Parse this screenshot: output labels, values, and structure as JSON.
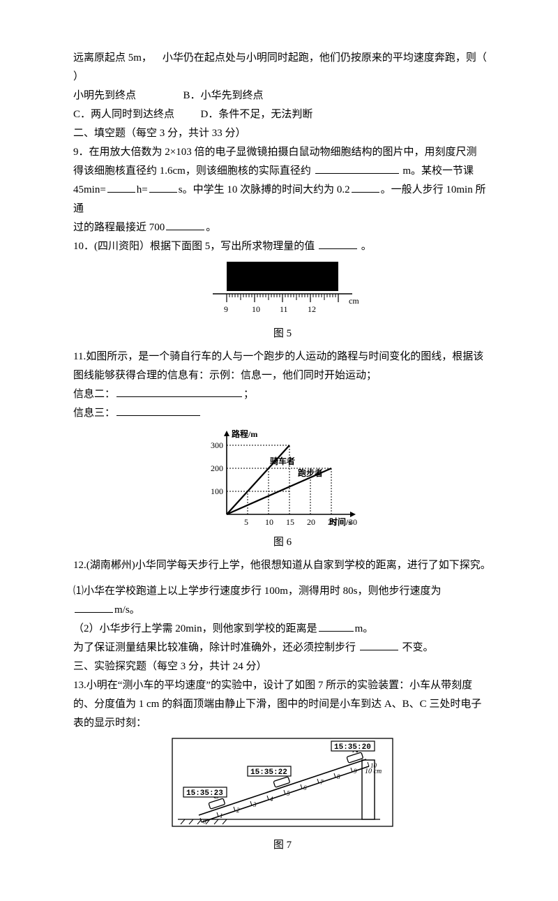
{
  "q8": {
    "line1_a": "远离原起点 5m，",
    "line1_b": "小华仍在起点处与小明同时起跑，他们仍按原来的平均速度奔跑，则（",
    "line2": "）",
    "optA": "小明先到终点",
    "optB": "B．小华先到终点",
    "optC": "C．两人同时到达终点",
    "optD": "D．条件不足，无法判断"
  },
  "section2": "二、填空题（每空 3 分，共计 33 分）",
  "q9": {
    "l1": "9．在用放大倍数为 2×103 倍的电子显微镜拍摄白鼠动物细胞结构的图片中，用刻度尺测",
    "l2a": "得该细胞核直径约 1.6cm，则该细胞核的实际直径约",
    "l2b": "m。某校一节课",
    "l3a": "45min=",
    "l3b": "h=",
    "l3c": "s。中学生 10 次脉搏的时间大约为 0.2",
    "l3d": "。一般人步行 10min 所通",
    "l4": "过的路程最接近 700",
    "l4end": "。"
  },
  "q10": {
    "text_a": "10．(四川资阳）根据下面图 5，写出所求物理量的值",
    "text_b": "。"
  },
  "fig5": {
    "caption": "图 5",
    "unit": "cm",
    "ticks": [
      "9",
      "10",
      "11",
      "12"
    ],
    "block_color": "#000000",
    "bg": "#ffffff"
  },
  "q11": {
    "l1": "11.如图所示，是一个骑自行车的人与一个跑步的人运动的路程与时间变化的图线，根据该",
    "l2": "图线能够获得合理的信息有：示例：信息一，他们同时开始运动；",
    "l3a": "信息二：",
    "l3b": "；",
    "l4a": "信息三："
  },
  "fig6": {
    "caption": "图 6",
    "ylabel": "路程/m",
    "xlabel": "时间/s",
    "yticks": [
      "100",
      "200",
      "300"
    ],
    "xticks": [
      "5",
      "10",
      "15",
      "20",
      "25",
      "30"
    ],
    "legend_bike": "骑车者",
    "legend_run": "跑步者"
  },
  "q12": {
    "l1": "12.(湖南郴州)小华同学每天步行上学，他很想知道从自家到学校的距离，进行了如下探究。",
    "p1a": "⑴小华在学校跑道上以上学步行速度步行 100m，测得用时 80s，则他步行速度为",
    "p1b": "m/s。",
    "p2a": "（2）小华步行上学需 20min，则他家到学校的距离是",
    "p2b": "m。",
    "p3a": "为了保证测量结果比较准确，除计时准确外，还必须控制步行",
    "p3b": "不变。"
  },
  "section3": "三、实验探究题（每空 3 分，共计 24 分）",
  "q13": {
    "l1": "13.小明在“测小车的平均速度”的实验中，设计了如图 7 所示的实验装置：小车从带刻度",
    "l2": "的、分度值为 1 cm 的斜面顶端由静止下滑，图中的时间是小车到达 A、B、C 三处时电子",
    "l3": "表的显示时刻："
  },
  "fig7": {
    "caption": "图 7",
    "timeA": "15:35:20",
    "timeB": "15:35:22",
    "timeC": "15:35:23",
    "labelA": "A",
    "labelB": "B",
    "labelC": "C",
    "len": "10 cm",
    "ticks": [
      "0",
      "1",
      "2",
      "3",
      "4",
      "5",
      "6",
      "7",
      "8",
      "9",
      "10"
    ]
  },
  "blanks": {
    "w120": 120,
    "w40": 40,
    "w50": 50,
    "w180": 180,
    "w60": 60,
    "w55": 55
  }
}
